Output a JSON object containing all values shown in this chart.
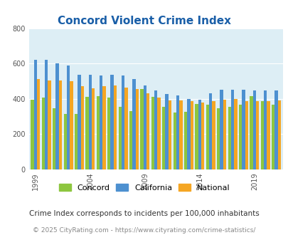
{
  "title": "Concord Violent Crime Index",
  "title_color": "#1a5fa8",
  "subtitle": "Crime Index corresponds to incidents per 100,000 inhabitants",
  "footer": "© 2025 CityRating.com - https://www.cityrating.com/crime-statistics/",
  "years": [
    1999,
    2000,
    2001,
    2002,
    2003,
    2004,
    2005,
    2006,
    2007,
    2008,
    2009,
    2010,
    2011,
    2012,
    2013,
    2014,
    2015,
    2016,
    2017,
    2018,
    2019,
    2020,
    2021
  ],
  "concord": [
    395,
    405,
    345,
    315,
    315,
    410,
    415,
    405,
    355,
    330,
    455,
    410,
    355,
    320,
    325,
    370,
    365,
    345,
    355,
    365,
    415,
    385,
    365
  ],
  "california": [
    620,
    620,
    600,
    590,
    535,
    535,
    530,
    535,
    530,
    510,
    475,
    445,
    425,
    420,
    400,
    395,
    430,
    450,
    450,
    450,
    445,
    445,
    445
  ],
  "national": [
    510,
    505,
    505,
    500,
    470,
    460,
    470,
    475,
    465,
    455,
    430,
    405,
    390,
    390,
    385,
    380,
    385,
    395,
    400,
    385,
    385,
    387,
    390
  ],
  "concord_color": "#8dc63f",
  "california_color": "#4d90d0",
  "national_color": "#f5a623",
  "bg_color": "#ddeef5",
  "ylim": [
    0,
    800
  ],
  "yticks": [
    0,
    200,
    400,
    600,
    800
  ],
  "xticks": [
    1999,
    2004,
    2009,
    2014,
    2019
  ],
  "grid_color": "#ffffff",
  "legend_labels": [
    "Concord",
    "California",
    "National"
  ]
}
